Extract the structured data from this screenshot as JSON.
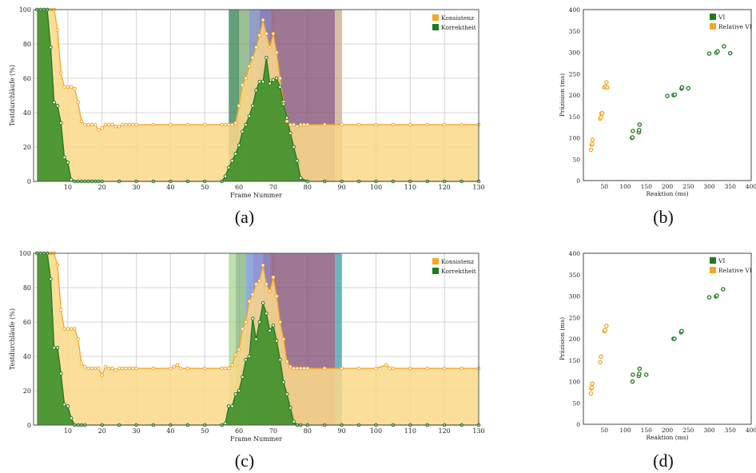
{
  "colors": {
    "consistency": "#f5a623",
    "consistency_fill": "#fcd88a",
    "correctness": "#1f7a1f",
    "correctness_fill": "#3d8f2a",
    "vi": "#1f7a1f",
    "relative_vi": "#f5a623",
    "grid": "#d4d4d4"
  },
  "captions": {
    "a": "(a)",
    "b": "(b)",
    "c": "(c)",
    "d": "(d)"
  },
  "chart_data": [
    {
      "id": "a",
      "type": "area",
      "xlabel": "Frame Nummer",
      "ylabel": "Testdurchläufe (%)",
      "xlim": [
        0,
        130
      ],
      "ylim": [
        0,
        100
      ],
      "xticks": [
        10,
        20,
        30,
        40,
        50,
        60,
        70,
        80,
        90,
        100,
        110,
        120,
        130
      ],
      "yticks": [
        0,
        20,
        40,
        60,
        80,
        100
      ],
      "legend_position": "top-right",
      "bands": [
        {
          "x0": 57,
          "x1": 60,
          "color": "#2f7f4f"
        },
        {
          "x0": 60,
          "x1": 63,
          "color": "#7aa870"
        },
        {
          "x0": 63,
          "x1": 66,
          "color": "#6b7fb0"
        },
        {
          "x0": 66,
          "x1": 69,
          "color": "#5e5aa8"
        },
        {
          "x0": 69,
          "x1": 88,
          "color": "#7d4a70"
        },
        {
          "x0": 88,
          "x1": 90,
          "color": "#c9a88a"
        }
      ],
      "series": [
        {
          "name": "Konsistenz",
          "x": [
            1,
            2,
            3,
            4,
            5,
            6,
            7,
            8,
            9,
            10,
            11,
            12,
            13,
            14,
            15,
            16,
            17,
            18,
            19,
            20,
            21,
            22,
            23,
            24,
            25,
            26,
            27,
            28,
            29,
            30,
            35,
            40,
            45,
            50,
            55,
            56,
            57,
            58,
            59,
            60,
            61,
            62,
            63,
            64,
            65,
            66,
            67,
            68,
            69,
            70,
            71,
            72,
            73,
            74,
            75,
            76,
            77,
            78,
            79,
            80,
            85,
            90,
            95,
            100,
            105,
            110,
            115,
            120,
            125,
            130
          ],
          "values": [
            100,
            100,
            100,
            100,
            100,
            100,
            88,
            63,
            55,
            55,
            55,
            54,
            46,
            35,
            33,
            33,
            33,
            33,
            30,
            31,
            33,
            33,
            33,
            32,
            32,
            33,
            33,
            33,
            33,
            33,
            33,
            33,
            33,
            33,
            33,
            33,
            33,
            33,
            34,
            44,
            56,
            60,
            67,
            72,
            78,
            85,
            94,
            86,
            78,
            86,
            75,
            60,
            46,
            35,
            33,
            33,
            32,
            33,
            33,
            33,
            33,
            33,
            33,
            33,
            33,
            33,
            33,
            33,
            33,
            33
          ]
        },
        {
          "name": "Korrektheit",
          "x": [
            1,
            2,
            3,
            4,
            5,
            6,
            7,
            8,
            9,
            10,
            11,
            12,
            13,
            14,
            15,
            16,
            17,
            18,
            19,
            20,
            25,
            30,
            35,
            40,
            45,
            50,
            55,
            56,
            57,
            58,
            59,
            60,
            61,
            62,
            63,
            64,
            65,
            66,
            67,
            68,
            69,
            70,
            71,
            72,
            73,
            74,
            75,
            76,
            77,
            78,
            80,
            85,
            90,
            95,
            100,
            105,
            110,
            115,
            120,
            125,
            130
          ],
          "values": [
            100,
            100,
            100,
            100,
            78,
            46,
            44,
            34,
            14,
            11,
            1,
            0,
            0,
            0,
            0,
            0,
            0,
            0,
            0,
            0,
            0,
            0,
            0,
            0,
            0,
            0,
            0,
            3,
            8,
            12,
            16,
            21,
            29,
            33,
            38,
            44,
            53,
            58,
            58,
            72,
            57,
            59,
            60,
            55,
            45,
            37,
            28,
            20,
            12,
            2,
            0,
            0,
            0,
            0,
            0,
            0,
            0,
            0,
            0,
            0,
            0
          ]
        }
      ]
    },
    {
      "id": "b",
      "type": "scatter",
      "xlabel": "Reaktion (ms)",
      "ylabel": "Präzision (ms)",
      "xlim": [
        0,
        400
      ],
      "ylim": [
        0,
        400
      ],
      "xticks": [
        50,
        100,
        150,
        200,
        250,
        300,
        350,
        400
      ],
      "yticks": [
        0,
        50,
        100,
        150,
        200,
        250,
        300,
        350,
        400
      ],
      "legend_position": "top-right",
      "series": [
        {
          "name": "VI",
          "points": [
            [
              116,
              100
            ],
            [
              117,
              101
            ],
            [
              118,
              116
            ],
            [
              132,
              113
            ],
            [
              133,
              118
            ],
            [
              134,
              131
            ],
            [
              200,
              198
            ],
            [
              215,
              200
            ],
            [
              218,
              201
            ],
            [
              234,
              215
            ],
            [
              235,
              218
            ],
            [
              250,
              216
            ],
            [
              300,
              297
            ],
            [
              317,
              299
            ],
            [
              320,
              302
            ],
            [
              335,
              314
            ],
            [
              350,
              298
            ]
          ]
        },
        {
          "name": "Relative VI",
          "points": [
            [
              18,
              72
            ],
            [
              20,
              84
            ],
            [
              21,
              86
            ],
            [
              22,
              95
            ],
            [
              40,
              145
            ],
            [
              42,
              148
            ],
            [
              43,
              157
            ],
            [
              45,
              158
            ],
            [
              50,
              218
            ],
            [
              53,
              220
            ],
            [
              55,
              230
            ],
            [
              57,
              218
            ]
          ]
        }
      ]
    },
    {
      "id": "c",
      "type": "area",
      "xlabel": "Frame Nummer",
      "ylabel": "Testdurchläufe (%)",
      "xlim": [
        0,
        130
      ],
      "ylim": [
        0,
        100
      ],
      "xticks": [
        10,
        20,
        30,
        40,
        50,
        60,
        70,
        80,
        90,
        100,
        110,
        120,
        130
      ],
      "yticks": [
        0,
        20,
        40,
        60,
        80,
        100
      ],
      "legend_position": "top-right",
      "bands": [
        {
          "x0": 57,
          "x1": 59,
          "color": "#a9d68f"
        },
        {
          "x0": 59,
          "x1": 62,
          "color": "#7fb37a"
        },
        {
          "x0": 62,
          "x1": 64,
          "color": "#6a8ed0"
        },
        {
          "x0": 64,
          "x1": 67,
          "color": "#6b73c8"
        },
        {
          "x0": 67,
          "x1": 69,
          "color": "#6a5aaa"
        },
        {
          "x0": 69,
          "x1": 88,
          "color": "#7d4a70"
        },
        {
          "x0": 88,
          "x1": 90,
          "color": "#3f9aa8"
        }
      ],
      "series": [
        {
          "name": "Konsistenz",
          "x": [
            1,
            2,
            3,
            4,
            5,
            6,
            7,
            8,
            9,
            10,
            11,
            12,
            13,
            14,
            15,
            16,
            17,
            18,
            19,
            20,
            21,
            22,
            23,
            24,
            25,
            26,
            27,
            28,
            29,
            30,
            35,
            40,
            41,
            42,
            43,
            45,
            50,
            55,
            56,
            57,
            58,
            59,
            60,
            61,
            62,
            63,
            64,
            65,
            66,
            67,
            68,
            69,
            70,
            71,
            72,
            73,
            74,
            75,
            76,
            77,
            78,
            79,
            80,
            85,
            90,
            95,
            100,
            103,
            104,
            105,
            110,
            115,
            120,
            125,
            130
          ],
          "values": [
            100,
            100,
            100,
            100,
            100,
            100,
            93,
            67,
            56,
            56,
            56,
            56,
            50,
            36,
            34,
            33,
            33,
            33,
            33,
            29,
            34,
            33,
            33,
            32,
            33,
            33,
            33,
            33,
            33,
            33,
            33,
            33,
            34,
            35,
            33,
            33,
            33,
            33,
            33,
            33,
            35,
            41,
            44,
            56,
            60,
            72,
            76,
            82,
            84,
            93,
            82,
            78,
            86,
            75,
            60,
            50,
            37,
            34,
            33,
            33,
            33,
            33,
            33,
            33,
            33,
            33,
            33,
            35,
            33,
            33,
            33,
            33,
            33,
            33,
            33
          ]
        },
        {
          "name": "Korrektheit",
          "x": [
            1,
            2,
            3,
            4,
            5,
            6,
            7,
            8,
            9,
            10,
            11,
            12,
            13,
            14,
            15,
            20,
            25,
            30,
            35,
            40,
            45,
            50,
            55,
            56,
            57,
            58,
            59,
            60,
            61,
            62,
            63,
            64,
            65,
            66,
            67,
            68,
            69,
            70,
            71,
            72,
            73,
            74,
            75,
            76,
            77,
            78,
            80,
            85,
            90,
            95,
            100,
            105,
            110,
            115,
            120,
            125,
            130
          ],
          "values": [
            100,
            100,
            100,
            100,
            85,
            45,
            45,
            30,
            12,
            11,
            4,
            0,
            0,
            0,
            0,
            0,
            0,
            0,
            0,
            0,
            0,
            0,
            0,
            1,
            11,
            11,
            18,
            20,
            28,
            38,
            40,
            62,
            50,
            60,
            71,
            65,
            55,
            58,
            49,
            38,
            25,
            18,
            10,
            2,
            0,
            0,
            0,
            0,
            0,
            0,
            0,
            0,
            0,
            0,
            0,
            0,
            0
          ]
        }
      ]
    },
    {
      "id": "d",
      "type": "scatter",
      "xlabel": "Reaktion (ms)",
      "ylabel": "Präzision (ms)",
      "xlim": [
        0,
        400
      ],
      "ylim": [
        0,
        400
      ],
      "xticks": [
        50,
        100,
        150,
        200,
        250,
        300,
        350,
        400
      ],
      "yticks": [
        0,
        50,
        100,
        150,
        200,
        250,
        300,
        350,
        400
      ],
      "legend_position": "top-right",
      "series": [
        {
          "name": "VI",
          "points": [
            [
              117,
              100
            ],
            [
              118,
              116
            ],
            [
              132,
              113
            ],
            [
              133,
              118
            ],
            [
              134,
              130
            ],
            [
              150,
              116
            ],
            [
              215,
              200
            ],
            [
              217,
              200
            ],
            [
              233,
              215
            ],
            [
              234,
              218
            ],
            [
              300,
              297
            ],
            [
              316,
              299
            ],
            [
              318,
              301
            ],
            [
              333,
              316
            ]
          ]
        },
        {
          "name": "Relative VI",
          "points": [
            [
              18,
              72
            ],
            [
              19,
              84
            ],
            [
              20,
              86
            ],
            [
              21,
              95
            ],
            [
              40,
              145
            ],
            [
              42,
              158
            ],
            [
              50,
              218
            ],
            [
              52,
              220
            ],
            [
              55,
              230
            ]
          ]
        }
      ]
    }
  ]
}
